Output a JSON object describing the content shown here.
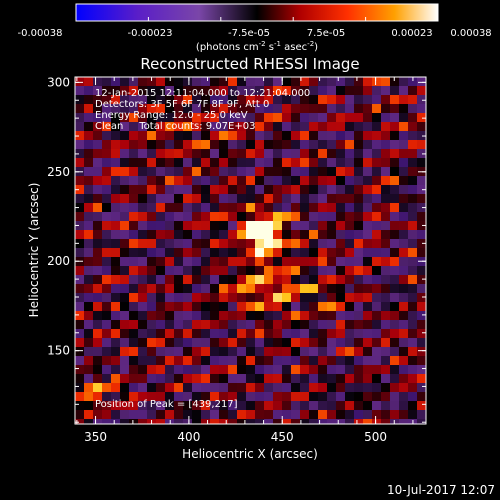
{
  "chart_data": {
    "type": "heatmap",
    "title": "Reconstructed RHESSI Image",
    "xlabel": "Heliocentric X (arcsec)",
    "ylabel": "Heliocentric Y (arcsec)",
    "xlim": [
      339,
      527
    ],
    "ylim": [
      109,
      303
    ],
    "x_ticks": [
      350,
      400,
      450,
      500
    ],
    "y_ticks": [
      150,
      200,
      250,
      300
    ],
    "colorbar": {
      "ticks": [
        "-0.00038",
        "-0.00023",
        "-7.5e-05",
        "7.5e-05",
        "0.00023",
        "0.00038"
      ],
      "range": [
        -0.00038,
        0.00038
      ],
      "unit_parts": [
        "(photons cm",
        "-2",
        " s",
        "-1",
        " asec",
        "-2",
        ")"
      ]
    },
    "info_lines": [
      "12-Jan-2015 12:11:04.000 to 12:21:04.000",
      "Detectors: 3F 5F 6F 7F 8F 9F, Att 0",
      "Energy Range: 12.0 - 25.0 keV",
      "Clean     Total counts: 9.07E+03"
    ],
    "peak_label": "Position of Peak = [439,217]",
    "peak": [
      439,
      217
    ]
  },
  "footer": {
    "date": "10-Jul-2017 12:07"
  }
}
